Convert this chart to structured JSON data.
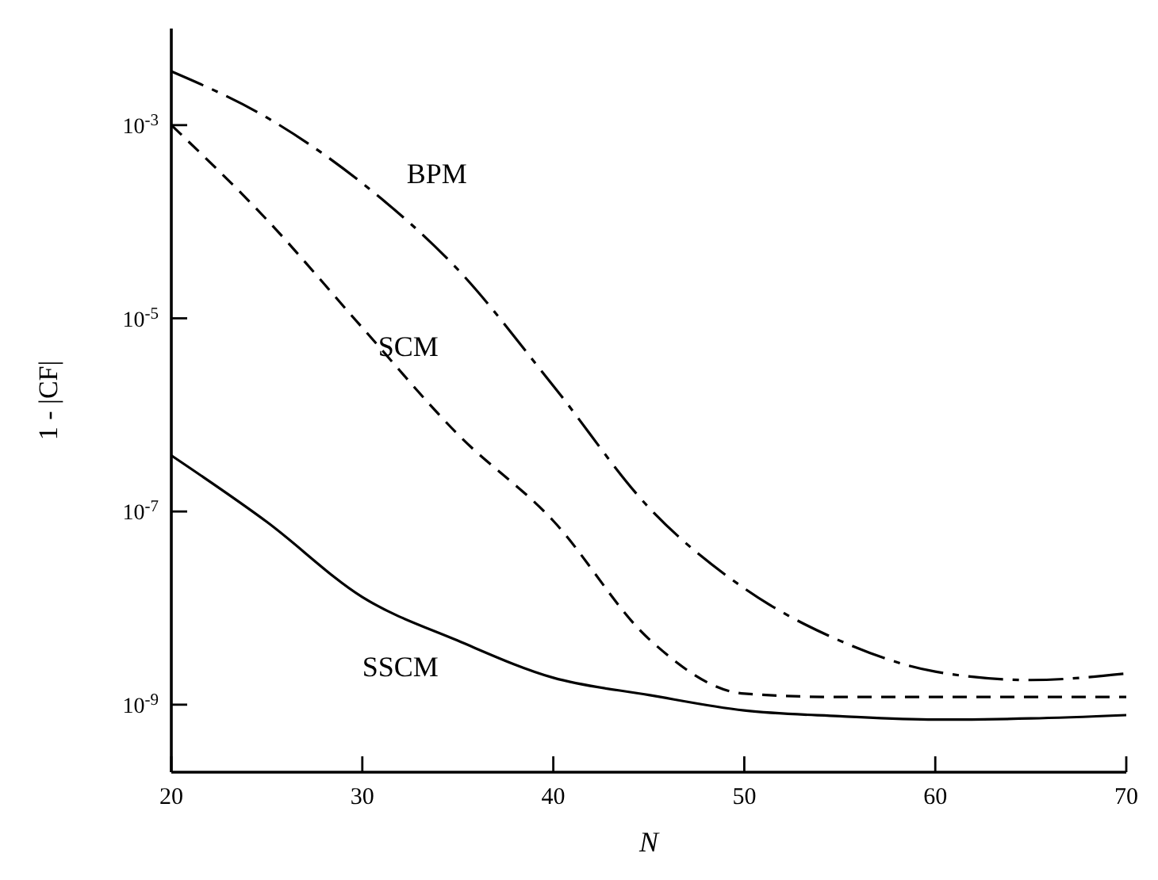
{
  "chart_data": {
    "type": "line",
    "xlabel": "N",
    "ylabel": "1 - |CF|",
    "log": "y",
    "x": [
      20,
      25,
      30,
      35,
      40,
      45,
      50,
      55,
      60,
      65,
      70
    ],
    "xlim": [
      20,
      70
    ],
    "xticks": [
      20,
      30,
      40,
      50,
      60,
      70
    ],
    "ylim": [
      2e-10,
      0.01
    ],
    "yticks": [
      {
        "value": 0.001,
        "label": "10$^{-3}$"
      },
      {
        "value": 1e-05,
        "label": "10$^{-5}$"
      },
      {
        "value": 1e-07,
        "label": "10$^{-7}$"
      },
      {
        "value": 1e-09,
        "label": "10$^{-9}$"
      }
    ],
    "grid": false,
    "marker": "none",
    "series": [
      {
        "name": "BPM",
        "color": "#000000",
        "line_style": "dashdot",
        "values": [
          0.0036,
          0.0012,
          0.00025,
          3.2e-05,
          2e-06,
          1.1e-07,
          1.6e-08,
          4.6e-09,
          2.2e-09,
          1.8e-09,
          2.1e-09
        ]
      },
      {
        "name": "SCM",
        "color": "#000000",
        "line_style": "dashed",
        "values": [
          0.001,
          0.000105,
          8e-06,
          6.3e-07,
          8e-08,
          4.8e-09,
          1.3e-09,
          1.2e-09,
          1.2e-09,
          1.2e-09,
          1.2e-09
        ]
      },
      {
        "name": "SSCM",
        "color": "#000000",
        "line_style": "solid",
        "values": [
          3.8e-07,
          7.8e-08,
          1.3e-08,
          4.6e-09,
          1.9e-09,
          1.26e-09,
          8.7e-10,
          7.6e-10,
          7e-10,
          7.2e-10,
          7.8e-10
        ]
      }
    ]
  }
}
